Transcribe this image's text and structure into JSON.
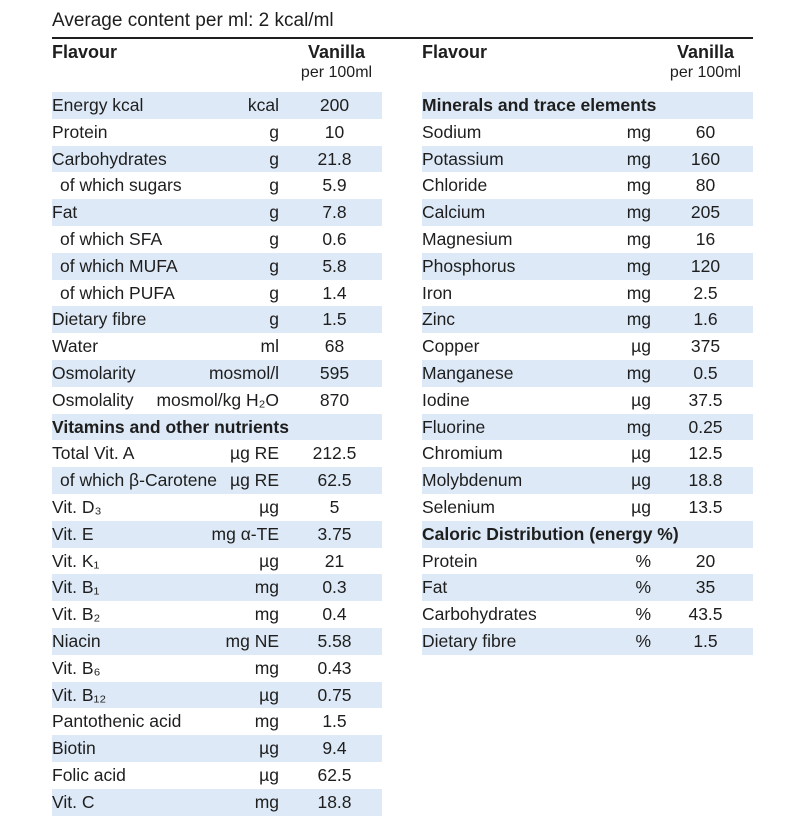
{
  "title": "Average content per ml: 2 kcal/ml",
  "header": {
    "flavour_label": "Flavour",
    "vanilla_label": "Vanilla",
    "per_label": "per 100ml"
  },
  "left_rows": [
    {
      "name": "Energy kcal",
      "unit": "kcal",
      "value": "200",
      "shade": true
    },
    {
      "name": "Protein",
      "unit": "g",
      "value": "10",
      "shade": false
    },
    {
      "name": "Carbohydrates",
      "unit": "g",
      "value": "21.8",
      "shade": true
    },
    {
      "name": "of which sugars",
      "unit": "g",
      "value": "5.9",
      "shade": false,
      "indent": true
    },
    {
      "name": "Fat",
      "unit": "g",
      "value": "7.8",
      "shade": true
    },
    {
      "name": "of which SFA",
      "unit": "g",
      "value": "0.6",
      "shade": false,
      "indent": true
    },
    {
      "name": "of which MUFA",
      "unit": "g",
      "value": "5.8",
      "shade": true,
      "indent": true
    },
    {
      "name": "of which PUFA",
      "unit": "g",
      "value": "1.4",
      "shade": false,
      "indent": true
    },
    {
      "name": "Dietary fibre",
      "unit": "g",
      "value": "1.5",
      "shade": true
    },
    {
      "name": "Water",
      "unit": "ml",
      "value": "68",
      "shade": false
    },
    {
      "name": "Osmolarity",
      "unit": "mosmol/l",
      "value": "595",
      "shade": true
    },
    {
      "name": "Osmolality",
      "unit": "mosmol/kg H₂O",
      "value": "870",
      "shade": false
    },
    {
      "name": "Vitamins and other nutrients",
      "section": true,
      "shade": true
    },
    {
      "name": "Total Vit. A",
      "unit": "µg RE",
      "value": "212.5",
      "shade": false
    },
    {
      "name": "of which β-Carotene",
      "unit": "µg RE",
      "value": "62.5",
      "shade": true,
      "indent": true
    },
    {
      "name": "Vit. D₃",
      "unit": "µg",
      "value": "5",
      "shade": false
    },
    {
      "name": "Vit. E",
      "unit": "mg α-TE",
      "value": "3.75",
      "shade": true
    },
    {
      "name": "Vit. K₁",
      "unit": "µg",
      "value": "21",
      "shade": false
    },
    {
      "name": "Vit. B₁",
      "unit": "mg",
      "value": "0.3",
      "shade": true
    },
    {
      "name": "Vit. B₂",
      "unit": "mg",
      "value": "0.4",
      "shade": false
    },
    {
      "name": "Niacin",
      "unit": "mg NE",
      "value": "5.58",
      "shade": true
    },
    {
      "name": "Vit. B₆",
      "unit": "mg",
      "value": "0.43",
      "shade": false
    },
    {
      "name": "Vit. B₁₂",
      "unit": "µg",
      "value": "0.75",
      "shade": true
    },
    {
      "name": "Pantothenic acid",
      "unit": "mg",
      "value": "1.5",
      "shade": false
    },
    {
      "name": "Biotin",
      "unit": "µg",
      "value": "9.4",
      "shade": true
    },
    {
      "name": "Folic acid",
      "unit": "µg",
      "value": "62.5",
      "shade": false
    },
    {
      "name": "Vit. C",
      "unit": "mg",
      "value": "18.8",
      "shade": true
    }
  ],
  "right_rows": [
    {
      "name": "Minerals and trace elements",
      "section": true,
      "shade": true
    },
    {
      "name": "Sodium",
      "unit": "mg",
      "value": "60",
      "shade": false
    },
    {
      "name": "Potassium",
      "unit": "mg",
      "value": "160",
      "shade": true
    },
    {
      "name": "Chloride",
      "unit": "mg",
      "value": "80",
      "shade": false
    },
    {
      "name": "Calcium",
      "unit": "mg",
      "value": "205",
      "shade": true
    },
    {
      "name": "Magnesium",
      "unit": "mg",
      "value": "16",
      "shade": false
    },
    {
      "name": "Phosphorus",
      "unit": "mg",
      "value": "120",
      "shade": true
    },
    {
      "name": "Iron",
      "unit": "mg",
      "value": "2.5",
      "shade": false
    },
    {
      "name": "Zinc",
      "unit": "mg",
      "value": "1.6",
      "shade": true
    },
    {
      "name": "Copper",
      "unit": "µg",
      "value": "375",
      "shade": false
    },
    {
      "name": "Manganese",
      "unit": "mg",
      "value": "0.5",
      "shade": true
    },
    {
      "name": "Iodine",
      "unit": "µg",
      "value": "37.5",
      "shade": false
    },
    {
      "name": "Fluorine",
      "unit": "mg",
      "value": "0.25",
      "shade": true
    },
    {
      "name": "Chromium",
      "unit": "µg",
      "value": "12.5",
      "shade": false
    },
    {
      "name": "Molybdenum",
      "unit": "µg",
      "value": "18.8",
      "shade": true
    },
    {
      "name": "Selenium",
      "unit": "µg",
      "value": "13.5",
      "shade": false
    },
    {
      "name": "Caloric Distribution (energy %)",
      "section": true,
      "shade": true
    },
    {
      "name": "Protein",
      "unit": "%",
      "value": "20",
      "shade": false
    },
    {
      "name": "Fat",
      "unit": "%",
      "value": "35",
      "shade": true
    },
    {
      "name": "Carbohydrates",
      "unit": "%",
      "value": "43.5",
      "shade": false
    },
    {
      "name": "Dietary fibre",
      "unit": "%",
      "value": "1.5",
      "shade": true
    }
  ],
  "colors": {
    "row_shade": "#dde9f6",
    "text": "#1e1e1e",
    "rule": "#1e1e1e"
  }
}
